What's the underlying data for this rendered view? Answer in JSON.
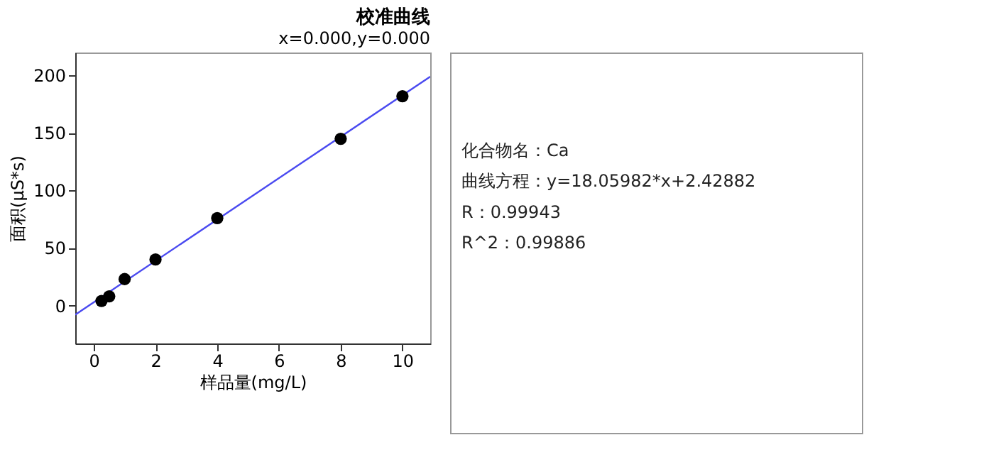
{
  "chart_data": [
    {
      "type": "scatter",
      "title": "校准曲线",
      "annotations": [
        "x=0.000,y=0.000"
      ],
      "xlabel": "样品量(mg/L)",
      "ylabel": "面积(μS*s)",
      "xlim": [
        -0.6,
        10.9
      ],
      "ylim": [
        -33,
        220
      ],
      "xticks": [
        0,
        2,
        4,
        6,
        8,
        10
      ],
      "yticks": [
        0,
        50,
        100,
        150,
        200
      ],
      "grid": false,
      "series": [
        {
          "type": "line",
          "color": "#4a4af0",
          "x": [
            -0.6,
            10.9
          ],
          "values": [
            -8,
            199
          ],
          "marker": "none",
          "line_style": "solid"
        },
        {
          "type": "scatter",
          "color": "#000000",
          "x": [
            0.25,
            0.5,
            1,
            2,
            4,
            8,
            10
          ],
          "values": [
            4,
            8,
            23,
            40,
            76,
            145,
            182
          ],
          "marker": "circle"
        }
      ]
    },
    {
      "type": "other",
      "annotations": [
        "化合物名：Ca",
        "曲线方程：y=18.05982*x+2.42882",
        "R：0.99943",
        "R^2：0.99886"
      ]
    }
  ]
}
